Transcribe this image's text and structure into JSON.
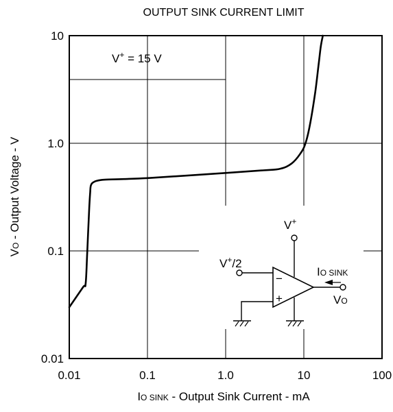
{
  "chart_data": {
    "type": "line",
    "title": "OUTPUT SINK CURRENT LIMIT",
    "xlabel": {
      "main": "I",
      "sub": "O SINK",
      "rest": " - Output Sink Current - mA"
    },
    "ylabel": {
      "main": "V",
      "sub": "O",
      "rest": " - Output Voltage - V"
    },
    "x_scale": "log",
    "y_scale": "log",
    "xlim": [
      0.01,
      100
    ],
    "ylim": [
      0.01,
      10
    ],
    "x_ticks": [
      "0.01",
      "0.1",
      "1.0",
      "10",
      "100"
    ],
    "y_ticks": [
      "0.01",
      "0.1",
      "1.0",
      "10"
    ],
    "grid": true,
    "condition": {
      "base": "V",
      "sup": "+",
      "rest": " = 15 V"
    },
    "series": [
      {
        "x": [
          0.01,
          0.015,
          0.0162,
          0.017,
          0.018,
          0.0185,
          0.019,
          0.021,
          0.025,
          0.03,
          0.05,
          0.1,
          0.3,
          1.0,
          3.0,
          5.0,
          7.0,
          9.0,
          10.5,
          12.0,
          14.0,
          15.5,
          16.5,
          17.5
        ],
        "y": [
          0.03,
          0.046,
          0.05,
          0.1,
          0.25,
          0.35,
          0.41,
          0.44,
          0.455,
          0.46,
          0.465,
          0.475,
          0.5,
          0.53,
          0.56,
          0.58,
          0.65,
          0.8,
          1.0,
          1.5,
          3.0,
          5.5,
          8.0,
          10.0
        ]
      }
    ],
    "inset": {
      "supply": {
        "base": "V",
        "sup": "+"
      },
      "bias": {
        "base": "V",
        "sup": "+",
        "rest": "/2"
      },
      "current": {
        "main": "I",
        "sub": "O SINK"
      },
      "output": {
        "main": "V",
        "sub": "O"
      },
      "minus": "−",
      "plus": "+"
    }
  }
}
